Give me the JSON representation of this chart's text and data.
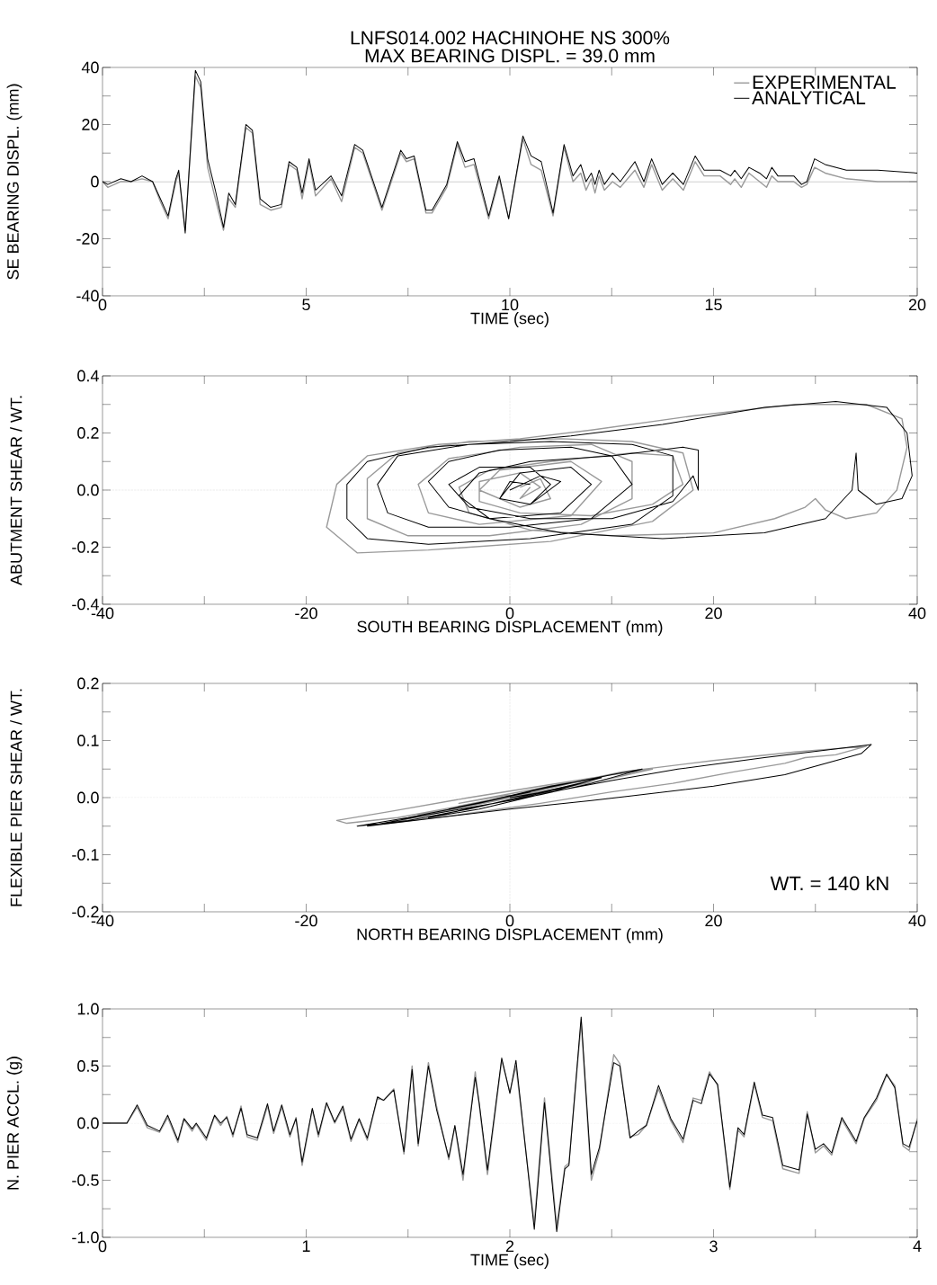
{
  "chart_data": [
    {
      "type": "line",
      "title": "LNFS014.002   HACHINOHE NS 300%",
      "subtitle": "MAX BEARING DISPL. =  39.0 mm",
      "xlabel": "TIME (sec)",
      "ylabel": "SE BEARING DISPL. (mm)",
      "legend": "top right",
      "xlim": [
        0,
        20
      ],
      "ylim": [
        -40,
        40
      ],
      "xticks": [
        0,
        {
          "value": 2.5,
          "label": null
        },
        5,
        {
          "value": 7.5,
          "label": null
        },
        10,
        {
          "value": 12.5,
          "label": null
        },
        15,
        {
          "value": 17.5,
          "label": null
        },
        20
      ],
      "yticks": [
        -40,
        {
          "value": -30,
          "label": null
        },
        -20,
        {
          "value": -10,
          "label": null
        },
        0,
        {
          "value": 10,
          "label": null
        },
        20,
        {
          "value": 30,
          "label": null
        },
        40
      ],
      "ref_lines": [
        {
          "axis": "y",
          "value": 0,
          "color": "#000000",
          "line_style": "solid"
        }
      ],
      "series": [
        {
          "name": "EXPERIMENTAL",
          "color": "#9a9a9a",
          "x": [
            0,
            0.13,
            0.45,
            0.7,
            0.97,
            1.23,
            1.42,
            1.61,
            1.8,
            1.87,
            2.03,
            2.28,
            2.41,
            2.58,
            2.77,
            2.97,
            3.1,
            3.26,
            3.52,
            3.68,
            3.87,
            4.13,
            4.39,
            4.58,
            4.77,
            4.9,
            5.07,
            5.23,
            5.61,
            5.87,
            6.19,
            6.39,
            6.86,
            7.32,
            7.46,
            7.65,
            7.94,
            8.09,
            8.45,
            8.71,
            8.9,
            9.12,
            9.48,
            9.74,
            9.97,
            10.32,
            10.52,
            10.77,
            11.06,
            11.33,
            11.55,
            11.74,
            11.87,
            12,
            12.09,
            12.19,
            12.32,
            12.52,
            12.71,
            13.07,
            13.29,
            13.48,
            13.74,
            14,
            14.26,
            14.55,
            14.77,
            15.16,
            15.42,
            15.52,
            15.68,
            15.87,
            16.13,
            16.3,
            16.43,
            16.58,
            16.97,
            17.16,
            17.29,
            17.48,
            17.74,
            18.26,
            19.03,
            20
          ],
          "values": [
            0,
            -2,
            0,
            0,
            1,
            0,
            -7,
            -13,
            0,
            3,
            -17,
            37,
            33,
            5,
            -6,
            -17,
            -6,
            -9,
            19,
            17,
            -8,
            -10,
            -9,
            6,
            4,
            -6,
            7,
            -5,
            1,
            -7,
            12,
            10,
            -10,
            10,
            7,
            8,
            -11,
            -11,
            -2,
            13,
            5,
            6,
            -13,
            1,
            -13,
            15,
            6,
            4,
            -12,
            12,
            0,
            3,
            -3,
            1,
            -4,
            2,
            -3,
            0,
            -2,
            4,
            -2,
            6,
            -3,
            1,
            -3,
            7,
            2,
            2,
            -1,
            1,
            -2,
            3,
            0,
            -2,
            2,
            0,
            0,
            -2,
            -1,
            5,
            3,
            1,
            0,
            0
          ]
        },
        {
          "name": "ANALYTICAL",
          "color": "#000000",
          "x": [
            0,
            0.13,
            0.45,
            0.7,
            0.97,
            1.23,
            1.42,
            1.61,
            1.8,
            1.87,
            2.03,
            2.28,
            2.41,
            2.58,
            2.77,
            2.97,
            3.1,
            3.26,
            3.52,
            3.68,
            3.87,
            4.13,
            4.39,
            4.58,
            4.77,
            4.9,
            5.07,
            5.23,
            5.61,
            5.87,
            6.19,
            6.39,
            6.86,
            7.32,
            7.46,
            7.65,
            7.94,
            8.09,
            8.45,
            8.71,
            8.9,
            9.12,
            9.48,
            9.74,
            9.97,
            10.32,
            10.52,
            10.77,
            11.06,
            11.33,
            11.55,
            11.74,
            11.87,
            12,
            12.09,
            12.19,
            12.32,
            12.52,
            12.71,
            13.07,
            13.29,
            13.48,
            13.74,
            14,
            14.26,
            14.55,
            14.77,
            15.16,
            15.42,
            15.52,
            15.68,
            15.87,
            16.13,
            16.3,
            16.43,
            16.58,
            16.97,
            17.16,
            17.29,
            17.48,
            17.74,
            18.26,
            19.03,
            20
          ],
          "values": [
            0,
            -1,
            1,
            0,
            2,
            0,
            -6,
            -12,
            1,
            4,
            -18,
            39,
            35,
            8,
            -3,
            -16,
            -4,
            -8,
            20,
            18,
            -6,
            -9,
            -8,
            7,
            5,
            -4,
            8,
            -3,
            2,
            -5,
            13,
            11,
            -9,
            11,
            8,
            9,
            -10,
            -10,
            -1,
            14,
            7,
            8,
            -12,
            2,
            -13,
            16,
            9,
            7,
            -11,
            13,
            2,
            6,
            0,
            3,
            -1,
            4,
            -1,
            3,
            0,
            7,
            0,
            8,
            -1,
            3,
            -1,
            9,
            4,
            4,
            2,
            4,
            1,
            5,
            3,
            1,
            5,
            2,
            2,
            -1,
            0,
            8,
            6,
            4,
            4,
            3
          ]
        }
      ]
    },
    {
      "type": "line",
      "xlabel": "SOUTH BEARING DISPLACEMENT (mm)",
      "ylabel": "ABUTMENT SHEAR / WT.",
      "xlim": [
        -40,
        40
      ],
      "ylim": [
        -0.4,
        0.4
      ],
      "xticks": [
        -40,
        {
          "value": -30,
          "label": null
        },
        -20,
        {
          "value": -10,
          "label": null
        },
        0,
        {
          "value": 10,
          "label": null
        },
        20,
        {
          "value": 30,
          "label": null
        },
        40
      ],
      "yticks": [
        {
          "value": -0.4,
          "label": "-0.4"
        },
        {
          "value": -0.3,
          "label": null
        },
        {
          "value": -0.2,
          "label": "-0.2"
        },
        {
          "value": -0.1,
          "label": null
        },
        {
          "value": 0,
          "label": "0.0"
        },
        {
          "value": 0.1,
          "label": null
        },
        {
          "value": 0.2,
          "label": "0.2"
        },
        {
          "value": 0.3,
          "label": null
        },
        {
          "value": 0.4,
          "label": "0.4"
        }
      ],
      "ref_lines": [
        {
          "axis": "x",
          "value": 0,
          "color": "#8c8c8c",
          "line_style": "dotted"
        },
        {
          "axis": "y",
          "value": 0,
          "color": "#8c8c8c",
          "line_style": "dotted"
        }
      ],
      "series": [
        {
          "color": "#9a9a9a",
          "x": [
            1,
            3,
            4,
            1,
            -3,
            -1,
            6,
            9,
            6,
            -3,
            -8,
            -9,
            -6,
            1,
            8,
            12,
            12,
            7,
            -2,
            -10,
            -14,
            -14,
            -11,
            -4,
            5,
            12,
            17,
            18,
            14,
            4,
            -8,
            -15,
            -18,
            -17,
            -14,
            -7,
            1,
            8,
            18,
            28,
            35,
            38.5,
            39,
            38,
            36,
            33,
            31,
            30,
            29,
            26,
            20,
            10,
            2,
            -4,
            -5,
            -2,
            4,
            12,
            16,
            17,
            14,
            8,
            1,
            -3,
            -3,
            1,
            3,
            1,
            2
          ],
          "values": [
            0.01,
            0.04,
            -0.03,
            -0.06,
            0,
            0.07,
            0.1,
            0.03,
            -0.09,
            -0.12,
            -0.08,
            0.02,
            0.11,
            0.15,
            0.16,
            0.1,
            -0.03,
            -0.12,
            -0.16,
            -0.16,
            -0.1,
            0.04,
            0.13,
            0.17,
            0.18,
            0.17,
            0.13,
            0,
            -0.11,
            -0.18,
            -0.21,
            -0.22,
            -0.13,
            0.02,
            0.12,
            0.16,
            0.18,
            0.21,
            0.26,
            0.3,
            0.3,
            0.25,
            0.15,
            0,
            -0.08,
            -0.1,
            -0.07,
            -0.03,
            -0.06,
            -0.1,
            -0.15,
            -0.16,
            -0.14,
            -0.08,
            0.01,
            0.07,
            0.1,
            0.13,
            0.12,
            0.02,
            -0.05,
            -0.09,
            -0.08,
            -0.04,
            0.03,
            0.06,
            0.01,
            -0.03,
            0.01
          ]
        },
        {
          "color": "#000000",
          "x": [
            0,
            3,
            5,
            2,
            -1,
            1,
            6,
            8,
            5,
            -2,
            -6,
            -8,
            -6,
            -1,
            6,
            10,
            12,
            8,
            0,
            -8,
            -12,
            -13,
            -11,
            -4,
            4,
            12,
            16,
            16,
            12,
            2,
            -8,
            -14,
            -16,
            -16,
            -14,
            -8,
            0,
            6,
            15,
            25,
            32,
            37,
            39,
            39.5,
            38.5,
            36,
            34.2,
            34,
            33.6,
            31,
            25,
            15,
            5,
            -2,
            -5,
            -3,
            2,
            10,
            17,
            18.5,
            18.5,
            18,
            16,
            10,
            2,
            -4,
            -6,
            -3,
            2,
            4,
            2,
            -1,
            0,
            2
          ],
          "values": [
            0,
            0.05,
            0.03,
            -0.05,
            -0.03,
            0.06,
            0.08,
            0.02,
            -0.08,
            -0.1,
            -0.06,
            0.03,
            0.1,
            0.14,
            0.15,
            0.12,
            0.02,
            -0.1,
            -0.13,
            -0.13,
            -0.08,
            0.02,
            0.12,
            0.16,
            0.17,
            0.16,
            0.12,
            -0.02,
            -0.12,
            -0.17,
            -0.19,
            -0.17,
            -0.1,
            0.02,
            0.1,
            0.15,
            0.17,
            0.19,
            0.23,
            0.29,
            0.31,
            0.29,
            0.2,
            0.05,
            -0.03,
            -0.05,
            0,
            0.13,
            0,
            -0.1,
            -0.15,
            -0.17,
            -0.15,
            -0.1,
            -0.02,
            0.06,
            0.1,
            0.12,
            0.15,
            0.14,
            0,
            0.05,
            -0.04,
            -0.1,
            -0.1,
            -0.06,
            0.02,
            0.08,
            0.08,
            0.02,
            -0.05,
            -0.03,
            0.03,
            0.02
          ]
        }
      ]
    },
    {
      "type": "line",
      "xlabel": "NORTH BEARING DISPLACEMENT (mm)",
      "ylabel": "FLEXIBLE PIER SHEAR / WT.",
      "annotations": [
        "WT. = 140 kN"
      ],
      "xlim": [
        -40,
        40
      ],
      "ylim": [
        -0.2,
        0.2
      ],
      "xticks": [
        -40,
        {
          "value": -30,
          "label": null
        },
        -20,
        {
          "value": -10,
          "label": null
        },
        0,
        {
          "value": 10,
          "label": null
        },
        20,
        {
          "value": 30,
          "label": null
        },
        40
      ],
      "yticks": [
        {
          "value": -0.2,
          "label": "-0.2"
        },
        {
          "value": -0.15,
          "label": null
        },
        {
          "value": -0.1,
          "label": "-0.1"
        },
        {
          "value": -0.05,
          "label": null
        },
        {
          "value": 0,
          "label": "0.0"
        },
        {
          "value": 0.05,
          "label": null
        },
        {
          "value": 0.1,
          "label": "0.1"
        },
        {
          "value": 0.15,
          "label": null
        },
        {
          "value": 0.2,
          "label": "0.2"
        }
      ],
      "ref_lines": [
        {
          "axis": "x",
          "value": 0,
          "color": "#8c8c8c",
          "line_style": "dotted"
        },
        {
          "axis": "y",
          "value": 0,
          "color": "#8c8c8c",
          "line_style": "dotted"
        }
      ],
      "series": [
        {
          "color": "#9a9a9a",
          "x": [
            0,
            4,
            7,
            2,
            -5,
            -11,
            -16,
            -17,
            -12,
            -4,
            3,
            10,
            14,
            9,
            3,
            -4,
            -9,
            -4,
            3,
            11,
            20,
            28,
            35,
            32,
            29,
            27,
            22,
            16,
            10,
            3,
            -5,
            -12,
            -8,
            0,
            6,
            9,
            4,
            -2,
            -5,
            0
          ],
          "values": [
            0,
            0.02,
            0.03,
            0.01,
            -0.015,
            -0.035,
            -0.045,
            -0.04,
            -0.025,
            0,
            0.02,
            0.04,
            0.05,
            0.03,
            0.01,
            -0.015,
            -0.03,
            -0.015,
            0.015,
            0.045,
            0.065,
            0.08,
            0.09,
            0.075,
            0.07,
            0.06,
            0.045,
            0.025,
            0.01,
            -0.01,
            -0.03,
            -0.045,
            -0.03,
            0,
            0.025,
            0.035,
            0.02,
            0,
            -0.01,
            0.005
          ]
        },
        {
          "color": "#000000",
          "x": [
            0,
            5,
            8,
            2,
            -4,
            -10,
            -15,
            -10,
            -3,
            3,
            10,
            13,
            8,
            3,
            -3,
            -8,
            -3,
            4,
            10,
            16.5,
            25,
            35.5,
            34.5,
            27,
            20,
            12,
            8,
            0,
            -7,
            -14,
            -8,
            0,
            6,
            9,
            4,
            -2,
            -6,
            -2,
            2
          ],
          "values": [
            0,
            0.015,
            0.03,
            0.005,
            -0.02,
            -0.04,
            -0.05,
            -0.035,
            -0.01,
            0.015,
            0.04,
            0.05,
            0.025,
            0.005,
            -0.015,
            -0.035,
            -0.02,
            0.01,
            0.03,
            0.05,
            0.07,
            0.093,
            0.077,
            0.04,
            0.02,
            0.003,
            -0.005,
            -0.02,
            -0.035,
            -0.05,
            -0.03,
            -0.005,
            0.02,
            0.035,
            0.02,
            -0.005,
            -0.02,
            -0.005,
            0.01
          ]
        }
      ]
    },
    {
      "type": "line",
      "xlabel": "TIME (sec)",
      "ylabel": "N. PIER ACCL. (g)",
      "xlim": [
        0,
        4
      ],
      "ylim": [
        -1,
        1
      ],
      "xticks": [
        0,
        {
          "value": 0.5,
          "label": null
        },
        1,
        {
          "value": 1.5,
          "label": null
        },
        2,
        {
          "value": 2.5,
          "label": null
        },
        3,
        {
          "value": 3.5,
          "label": null
        },
        4
      ],
      "yticks": [
        {
          "value": -1,
          "label": "-1.0"
        },
        {
          "value": -0.75,
          "label": null
        },
        {
          "value": -0.5,
          "label": "-0.5"
        },
        {
          "value": -0.25,
          "label": null
        },
        {
          "value": 0,
          "label": "0.0"
        },
        {
          "value": 0.25,
          "label": null
        },
        {
          "value": 0.5,
          "label": "0.5"
        },
        {
          "value": 0.75,
          "label": null
        },
        {
          "value": 1,
          "label": "1.0"
        }
      ],
      "ref_lines": [
        {
          "axis": "y",
          "value": 0,
          "color": "#8c8c8c",
          "line_style": "dotted"
        }
      ],
      "series": [
        {
          "color": "#9a9a9a",
          "x": [
            0,
            0.12,
            0.17,
            0.22,
            0.28,
            0.32,
            0.37,
            0.4,
            0.44,
            0.46,
            0.51,
            0.55,
            0.58,
            0.61,
            0.64,
            0.68,
            0.71,
            0.76,
            0.81,
            0.84,
            0.88,
            0.92,
            0.95,
            0.98,
            1.03,
            1.06,
            1.1,
            1.14,
            1.18,
            1.22,
            1.26,
            1.3,
            1.35,
            1.38,
            1.43,
            1.48,
            1.52,
            1.55,
            1.6,
            1.64,
            1.7,
            1.73,
            1.77,
            1.83,
            1.85,
            1.89,
            1.96,
            2.0,
            2.03,
            2.12,
            2.17,
            2.23,
            2.27,
            2.29,
            2.35,
            2.4,
            2.44,
            2.51,
            2.54,
            2.59,
            2.63,
            2.67,
            2.73,
            2.79,
            2.85,
            2.9,
            2.94,
            2.98,
            3.02,
            3.08,
            3.12,
            3.15,
            3.2,
            3.24,
            3.29,
            3.34,
            3.42,
            3.46,
            3.5,
            3.54,
            3.58,
            3.63,
            3.7,
            3.74,
            3.8,
            3.85,
            3.89,
            3.93,
            3.96,
            4.0
          ],
          "values": [
            0,
            0,
            0.14,
            -0.04,
            -0.08,
            0.05,
            -0.17,
            0.03,
            -0.07,
            -0.01,
            -0.15,
            0.06,
            -0.02,
            0.06,
            -0.12,
            0.15,
            -0.12,
            -0.15,
            0.15,
            -0.09,
            0.14,
            -0.12,
            0.05,
            -0.37,
            0.12,
            -0.12,
            0.17,
            0,
            0.13,
            -0.16,
            0.03,
            -0.15,
            0.22,
            0.2,
            0.3,
            -0.27,
            0.5,
            -0.2,
            0.53,
            0.15,
            -0.32,
            -0.03,
            -0.5,
            0.45,
            0.15,
            -0.45,
            0.55,
            0.27,
            0.5,
            -0.88,
            0.22,
            -0.9,
            -0.38,
            -0.35,
            0.88,
            -0.5,
            -0.24,
            0.6,
            0.52,
            -0.12,
            -0.1,
            -0.02,
            0.3,
            0.02,
            -0.17,
            0.22,
            0.2,
            0.45,
            0.33,
            -0.58,
            -0.06,
            -0.12,
            0.34,
            0.05,
            0.02,
            -0.4,
            -0.44,
            0.1,
            -0.26,
            -0.2,
            -0.28,
            0.03,
            -0.18,
            0.04,
            0.2,
            0.42,
            0.33,
            -0.2,
            -0.24,
            0.04
          ]
        },
        {
          "color": "#000000",
          "x": [
            0,
            0.12,
            0.17,
            0.22,
            0.28,
            0.32,
            0.37,
            0.4,
            0.44,
            0.46,
            0.51,
            0.55,
            0.58,
            0.61,
            0.64,
            0.68,
            0.71,
            0.76,
            0.81,
            0.84,
            0.88,
            0.92,
            0.95,
            0.98,
            1.03,
            1.06,
            1.1,
            1.14,
            1.18,
            1.22,
            1.26,
            1.3,
            1.35,
            1.38,
            1.43,
            1.48,
            1.52,
            1.55,
            1.6,
            1.64,
            1.7,
            1.73,
            1.77,
            1.83,
            1.85,
            1.89,
            1.96,
            2.0,
            2.03,
            2.12,
            2.17,
            2.23,
            2.27,
            2.29,
            2.35,
            2.4,
            2.44,
            2.51,
            2.54,
            2.59,
            2.63,
            2.67,
            2.73,
            2.79,
            2.85,
            2.9,
            2.94,
            2.98,
            3.02,
            3.08,
            3.12,
            3.15,
            3.2,
            3.24,
            3.29,
            3.34,
            3.42,
            3.46,
            3.5,
            3.54,
            3.58,
            3.63,
            3.7,
            3.74,
            3.8,
            3.85,
            3.89,
            3.93,
            3.96,
            4.0
          ],
          "values": [
            0,
            0,
            0.16,
            -0.02,
            -0.07,
            0.07,
            -0.15,
            0.04,
            -0.05,
            0,
            -0.13,
            0.07,
            0,
            0.05,
            -0.1,
            0.13,
            -0.1,
            -0.13,
            0.17,
            -0.07,
            0.16,
            -0.1,
            0.04,
            -0.34,
            0.13,
            -0.1,
            0.18,
            0.01,
            0.15,
            -0.14,
            0.04,
            -0.13,
            0.23,
            0.2,
            0.29,
            -0.25,
            0.47,
            -0.18,
            0.5,
            0.12,
            -0.3,
            -0.02,
            -0.45,
            0.4,
            0.17,
            -0.41,
            0.57,
            0.26,
            0.55,
            -0.93,
            0.18,
            -0.95,
            -0.4,
            -0.37,
            0.93,
            -0.45,
            -0.21,
            0.53,
            0.5,
            -0.13,
            -0.07,
            -0.02,
            0.33,
            0.04,
            -0.14,
            0.2,
            0.17,
            0.43,
            0.34,
            -0.56,
            -0.04,
            -0.1,
            0.36,
            0.07,
            0.05,
            -0.37,
            -0.41,
            0.08,
            -0.23,
            -0.18,
            -0.26,
            0.05,
            -0.16,
            0.05,
            0.22,
            0.43,
            0.31,
            -0.18,
            -0.21,
            0.02
          ]
        }
      ]
    }
  ]
}
